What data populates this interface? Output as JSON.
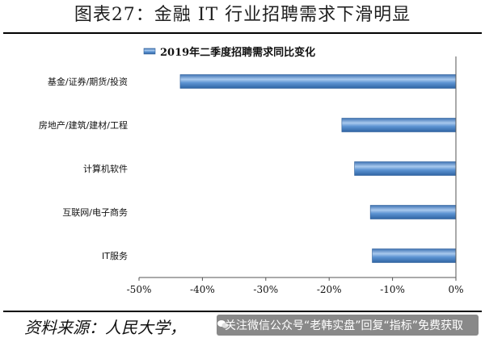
{
  "figure": {
    "title": "图表27：金融 IT 行业招聘需求下滑明显",
    "source": "资料来源：人民大学，",
    "watermark": "关注微信公众号“老韩实盘”回复“指标”免费获取"
  },
  "colors": {
    "bar_fill": "#4f86c6",
    "bar_highlight": "#a9c9ee",
    "bar_border": "#2f5f99",
    "axis": "#555555",
    "text": "#111111"
  },
  "chart_data": {
    "type": "bar",
    "orientation": "horizontal",
    "categories": [
      "基金/证券/期货/投资",
      "房地产/建筑/建材/工程",
      "计算机软件",
      "互联网/电子商务",
      "IT服务"
    ],
    "series": [
      {
        "name": "2019年二季度招聘需求同比变化",
        "values": [
          -43.5,
          -18.0,
          -16.0,
          -13.5,
          -13.2
        ]
      }
    ],
    "xlim": [
      -50,
      0
    ],
    "xticks": [
      -50,
      -40,
      -30,
      -20,
      -10,
      0
    ],
    "xtick_labels": [
      "-50%",
      "-40%",
      "-30%",
      "-20%",
      "-10%",
      "0%"
    ],
    "legend_position": "top",
    "grid": false
  }
}
